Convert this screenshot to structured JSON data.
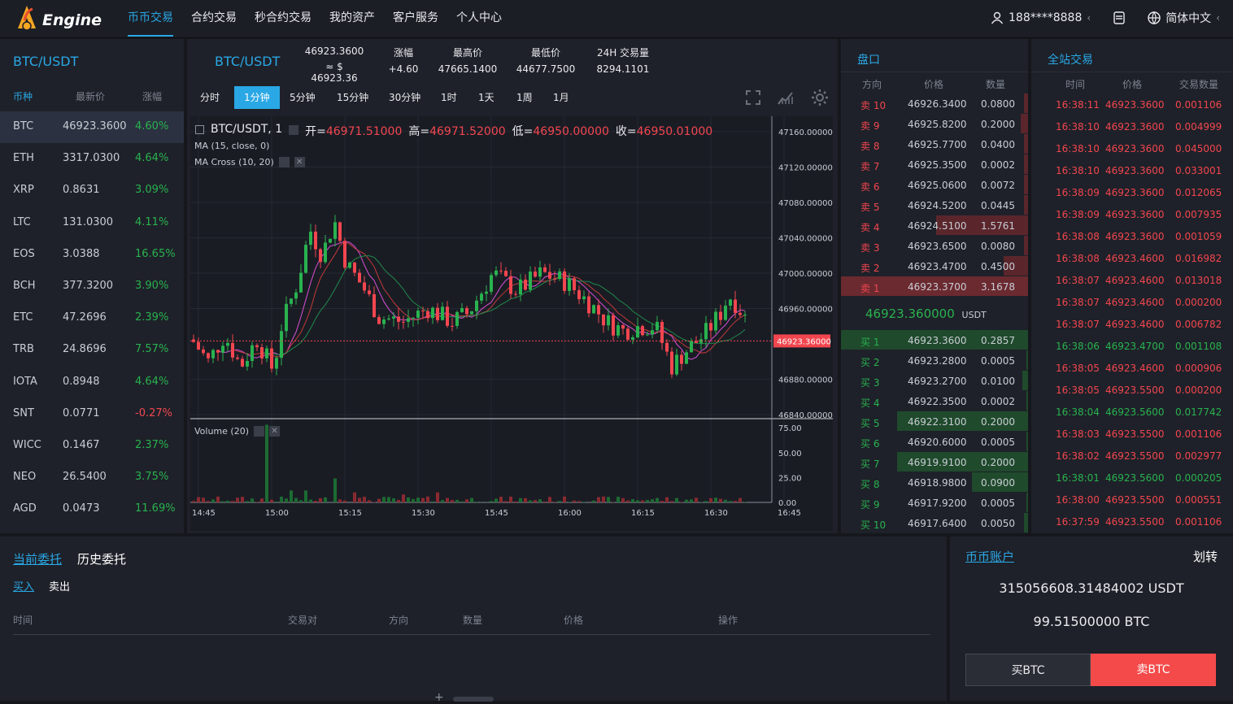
{
  "header": {
    "logo_text": "Engine",
    "nav": [
      "币币交易",
      "合约交易",
      "秒合约交易",
      "我的资产",
      "客户服务",
      "个人中心"
    ],
    "user": "188****8888",
    "language": "简体中文"
  },
  "market": {
    "pair": "BTC/USDT",
    "col_coin": "币种",
    "col_price": "最新价",
    "col_change": "涨幅",
    "rows": [
      {
        "coin": "BTC",
        "price": "46923.3600",
        "change": "4.60%",
        "dir": "up"
      },
      {
        "coin": "ETH",
        "price": "3317.0300",
        "change": "4.64%",
        "dir": "up"
      },
      {
        "coin": "XRP",
        "price": "0.8631",
        "change": "3.09%",
        "dir": "up"
      },
      {
        "coin": "LTC",
        "price": "131.0300",
        "change": "4.11%",
        "dir": "up"
      },
      {
        "coin": "EOS",
        "price": "3.0388",
        "change": "16.65%",
        "dir": "up"
      },
      {
        "coin": "BCH",
        "price": "377.3200",
        "change": "3.90%",
        "dir": "up"
      },
      {
        "coin": "ETC",
        "price": "47.2696",
        "change": "2.39%",
        "dir": "up"
      },
      {
        "coin": "TRB",
        "price": "24.8696",
        "change": "7.57%",
        "dir": "up"
      },
      {
        "coin": "IOTA",
        "price": "0.8948",
        "change": "4.64%",
        "dir": "up"
      },
      {
        "coin": "SNT",
        "price": "0.0771",
        "change": "-0.27%",
        "dir": "down"
      },
      {
        "coin": "WICC",
        "price": "0.1467",
        "change": "2.37%",
        "dir": "up"
      },
      {
        "coin": "NEO",
        "price": "26.5400",
        "change": "3.75%",
        "dir": "up"
      },
      {
        "coin": "AGD",
        "price": "0.0473",
        "change": "11.69%",
        "dir": "up"
      }
    ]
  },
  "ticker": {
    "pair": "BTC/USDT",
    "last": "46923.3600",
    "last_cny": "≈ $ 46923.36",
    "change_label": "涨幅",
    "change": "+4.60",
    "high_label": "最高价",
    "high": "47665.1400",
    "low_label": "最低价",
    "low": "44677.7500",
    "vol_label": "24H 交易量",
    "vol": "8294.1101"
  },
  "timeframes": [
    "分时",
    "1分钟",
    "5分钟",
    "15分钟",
    "30分钟",
    "1时",
    "1天",
    "1周",
    "1月"
  ],
  "chart": {
    "legend_symbol": "BTC/USDT, 1",
    "o_label": "开=",
    "o": "46971.51000",
    "h_label": "高=",
    "h": "46971.52000",
    "l_label": "低=",
    "l": "46950.00000",
    "c_label": "收=",
    "c": "46950.01000",
    "ma_label": "MA (15, close, 0)",
    "macross_label": "MA Cross (10, 20)",
    "volume_label": "Volume (20)",
    "price_ticks": [
      "47160.00000",
      "47120.00000",
      "47080.00000",
      "47040.00000",
      "47000.00000",
      "46960.00000",
      "46880.00000",
      "46840.00000"
    ],
    "last_price_tag": "46923.36000",
    "vol_ticks": [
      "75.00",
      "50.00",
      "25.00",
      "0.00"
    ],
    "time_ticks": [
      "14:45",
      "15:00",
      "15:15",
      "15:30",
      "15:45",
      "16:00",
      "16:15",
      "16:30",
      "16:45"
    ],
    "colors": {
      "up": "#29b24f",
      "down": "#f2464f"
    }
  },
  "chart_data": {
    "type": "candlestick",
    "ylim": [
      46830,
      47170
    ],
    "last_price": 46923.36,
    "volume_ylim": [
      0,
      80
    ]
  },
  "orderbook": {
    "title": "盘口",
    "col_dir": "方向",
    "col_price": "价格",
    "col_qty": "数量",
    "asks": [
      {
        "label": "卖 10",
        "price": "46926.3400",
        "qty": "0.0800",
        "depth": 0.02
      },
      {
        "label": "卖 9",
        "price": "46925.8200",
        "qty": "0.2000",
        "depth": 0.04
      },
      {
        "label": "卖 8",
        "price": "46925.7700",
        "qty": "0.0400",
        "depth": 0.02
      },
      {
        "label": "卖 7",
        "price": "46925.3500",
        "qty": "0.0002",
        "depth": 0.02
      },
      {
        "label": "卖 6",
        "price": "46925.0600",
        "qty": "0.0072",
        "depth": 0.02
      },
      {
        "label": "卖 5",
        "price": "46924.5200",
        "qty": "0.0445",
        "depth": 0.02
      },
      {
        "label": "卖 4",
        "price": "46924.5100",
        "qty": "1.5761",
        "depth": 0.49
      },
      {
        "label": "卖 3",
        "price": "46923.6500",
        "qty": "0.0080",
        "depth": 0.02
      },
      {
        "label": "卖 2",
        "price": "46923.4700",
        "qty": "0.4500",
        "depth": 0.13
      },
      {
        "label": "卖 1",
        "price": "46923.3700",
        "qty": "3.1678",
        "depth": 1.0
      }
    ],
    "mid_price": "46923.360000",
    "mid_unit": "USDT",
    "bids": [
      {
        "label": "买 1",
        "price": "46923.3600",
        "qty": "0.2857",
        "depth": 1.0
      },
      {
        "label": "买 2",
        "price": "46923.2800",
        "qty": "0.0005",
        "depth": 0.01
      },
      {
        "label": "买 3",
        "price": "46923.2700",
        "qty": "0.0100",
        "depth": 0.03
      },
      {
        "label": "买 4",
        "price": "46922.3500",
        "qty": "0.0002",
        "depth": 0.01
      },
      {
        "label": "买 5",
        "price": "46922.3100",
        "qty": "0.2000",
        "depth": 0.7
      },
      {
        "label": "买 6",
        "price": "46920.6000",
        "qty": "0.0005",
        "depth": 0.01
      },
      {
        "label": "买 7",
        "price": "46919.9100",
        "qty": "0.2000",
        "depth": 0.7
      },
      {
        "label": "买 8",
        "price": "46918.9800",
        "qty": "0.0900",
        "depth": 0.3
      },
      {
        "label": "买 9",
        "price": "46917.9200",
        "qty": "0.0005",
        "depth": 0.01
      },
      {
        "label": "买 10",
        "price": "46917.6400",
        "qty": "0.0050",
        "depth": 0.02
      }
    ]
  },
  "trades": {
    "title": "全站交易",
    "col_time": "时间",
    "col_price": "价格",
    "col_qty": "交易数量",
    "rows": [
      {
        "time": "16:38:11",
        "price": "46923.3600",
        "qty": "0.001106",
        "dir": "down"
      },
      {
        "time": "16:38:10",
        "price": "46923.3600",
        "qty": "0.004999",
        "dir": "down"
      },
      {
        "time": "16:38:10",
        "price": "46923.3600",
        "qty": "0.045000",
        "dir": "down"
      },
      {
        "time": "16:38:10",
        "price": "46923.3600",
        "qty": "0.033001",
        "dir": "down"
      },
      {
        "time": "16:38:09",
        "price": "46923.3600",
        "qty": "0.012065",
        "dir": "down"
      },
      {
        "time": "16:38:09",
        "price": "46923.3600",
        "qty": "0.007935",
        "dir": "down"
      },
      {
        "time": "16:38:08",
        "price": "46923.3600",
        "qty": "0.001059",
        "dir": "down"
      },
      {
        "time": "16:38:08",
        "price": "46923.4600",
        "qty": "0.016982",
        "dir": "down"
      },
      {
        "time": "16:38:07",
        "price": "46923.4600",
        "qty": "0.013018",
        "dir": "down"
      },
      {
        "time": "16:38:07",
        "price": "46923.4600",
        "qty": "0.000200",
        "dir": "down"
      },
      {
        "time": "16:38:07",
        "price": "46923.4600",
        "qty": "0.006782",
        "dir": "down"
      },
      {
        "time": "16:38:06",
        "price": "46923.4700",
        "qty": "0.001108",
        "dir": "up"
      },
      {
        "time": "16:38:05",
        "price": "46923.4600",
        "qty": "0.000906",
        "dir": "down"
      },
      {
        "time": "16:38:05",
        "price": "46923.5500",
        "qty": "0.000200",
        "dir": "down"
      },
      {
        "time": "16:38:04",
        "price": "46923.5600",
        "qty": "0.017742",
        "dir": "up"
      },
      {
        "time": "16:38:03",
        "price": "46923.5500",
        "qty": "0.001106",
        "dir": "down"
      },
      {
        "time": "16:38:02",
        "price": "46923.5500",
        "qty": "0.002977",
        "dir": "down"
      },
      {
        "time": "16:38:01",
        "price": "46923.5600",
        "qty": "0.000205",
        "dir": "up"
      },
      {
        "time": "16:38:00",
        "price": "46923.5500",
        "qty": "0.000551",
        "dir": "down"
      },
      {
        "time": "16:37:59",
        "price": "46923.5500",
        "qty": "0.001106",
        "dir": "down"
      }
    ]
  },
  "orders": {
    "tab_current": "当前委托",
    "tab_history": "历史委托",
    "sub_buy": "买入",
    "sub_sell": "卖出",
    "cols": [
      "时间",
      "交易对",
      "方向",
      "数量",
      "价格",
      "操作"
    ]
  },
  "account": {
    "title": "币币账户",
    "transfer": "划转",
    "usdt_balance": "315056608.31484002 USDT",
    "btc_balance": "99.51500000 BTC",
    "buy_label": "买BTC",
    "sell_label": "卖BTC",
    "sell_color": "#f44a4a"
  }
}
